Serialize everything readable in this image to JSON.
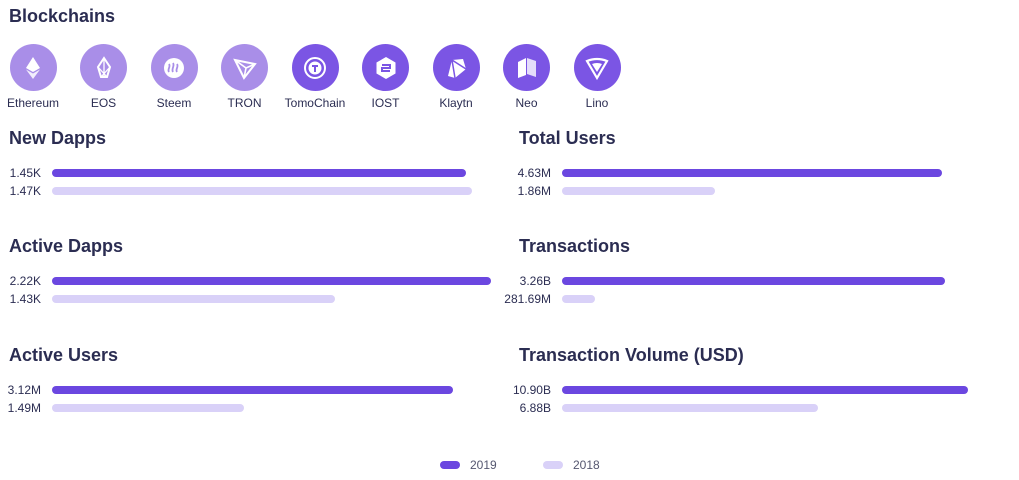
{
  "header": {
    "title": "Blockchains"
  },
  "colors": {
    "series_2019": "#6b47e0",
    "series_2018": "#d9d1f8",
    "chain_light": "#a98ee8",
    "chain_dark": "#7b55e4"
  },
  "blockchains": [
    {
      "label": "Ethereum",
      "icon": "ethereum-icon",
      "shade": "light"
    },
    {
      "label": "EOS",
      "icon": "eos-icon",
      "shade": "light"
    },
    {
      "label": "Steem",
      "icon": "steem-icon",
      "shade": "light"
    },
    {
      "label": "TRON",
      "icon": "tron-icon",
      "shade": "light"
    },
    {
      "label": "TomoChain",
      "icon": "tomochain-icon",
      "shade": "dark"
    },
    {
      "label": "IOST",
      "icon": "iost-icon",
      "shade": "dark"
    },
    {
      "label": "Klaytn",
      "icon": "klaytn-icon",
      "shade": "dark"
    },
    {
      "label": "Neo",
      "icon": "neo-icon",
      "shade": "dark"
    },
    {
      "label": "Lino",
      "icon": "lino-icon",
      "shade": "dark"
    }
  ],
  "chart_data": [
    {
      "type": "bar",
      "title": "New Dapps",
      "series": [
        {
          "name": "2019",
          "values": [
            1450
          ],
          "label": "1.45K"
        },
        {
          "name": "2018",
          "values": [
            1470
          ],
          "label": "1.47K"
        }
      ]
    },
    {
      "type": "bar",
      "title": "Total Users",
      "series": [
        {
          "name": "2019",
          "values": [
            4630000
          ],
          "label": "4.63M"
        },
        {
          "name": "2018",
          "values": [
            1860000
          ],
          "label": "1.86M"
        }
      ]
    },
    {
      "type": "bar",
      "title": "Active Dapps",
      "series": [
        {
          "name": "2019",
          "values": [
            2220
          ],
          "label": "2.22K"
        },
        {
          "name": "2018",
          "values": [
            1430
          ],
          "label": "1.43K"
        }
      ]
    },
    {
      "type": "bar",
      "title": "Transactions",
      "series": [
        {
          "name": "2019",
          "values": [
            3260000000
          ],
          "label": "3.26B"
        },
        {
          "name": "2018",
          "values": [
            281690000
          ],
          "label": "281.69M"
        }
      ]
    },
    {
      "type": "bar",
      "title": "Active Users",
      "series": [
        {
          "name": "2019",
          "values": [
            3120000
          ],
          "label": "3.12M"
        },
        {
          "name": "2018",
          "values": [
            1490000
          ],
          "label": "1.49M"
        }
      ]
    },
    {
      "type": "bar",
      "title": "Transaction Volume (USD)",
      "series": [
        {
          "name": "2019",
          "values": [
            10900000000
          ],
          "label": "10.90B"
        },
        {
          "name": "2018",
          "values": [
            6880000000
          ],
          "label": "6.88B"
        }
      ]
    }
  ],
  "legend": [
    {
      "label": "2019"
    },
    {
      "label": "2018"
    }
  ]
}
